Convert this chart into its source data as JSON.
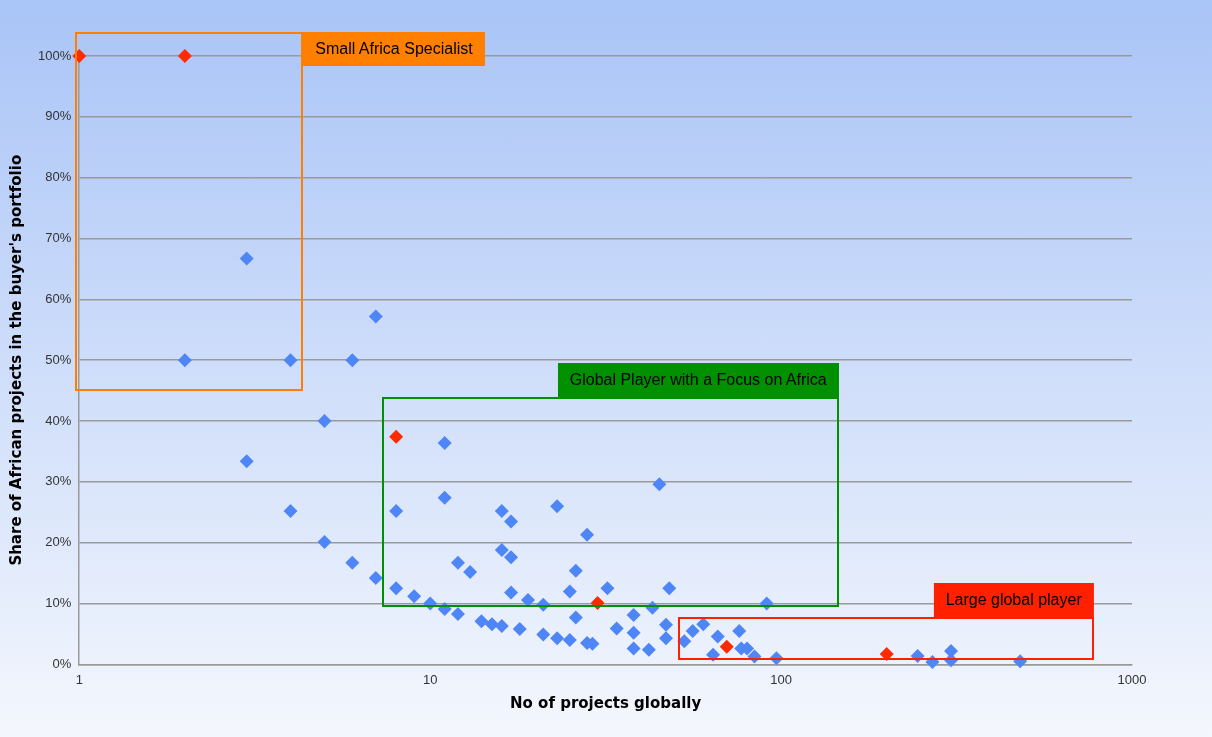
{
  "chart_data": {
    "type": "scatter",
    "xlabel": "No of projects globally",
    "ylabel": "Share of African projects in the buyer's portfolio",
    "log": "x",
    "xlim": [
      1,
      1000
    ],
    "xticks": [
      1,
      10,
      100,
      1000
    ],
    "ylim": [
      0,
      100
    ],
    "yticks": [
      {
        "value": 0,
        "label": "0%"
      },
      {
        "value": 10,
        "label": "10%"
      },
      {
        "value": 20,
        "label": "20%"
      },
      {
        "value": 30,
        "label": "30%"
      },
      {
        "value": 40,
        "label": "40%"
      },
      {
        "value": 50,
        "label": "50%"
      },
      {
        "value": 60,
        "label": "60%"
      },
      {
        "value": 70,
        "label": "70%"
      },
      {
        "value": 80,
        "label": "80%"
      },
      {
        "value": 90,
        "label": "90%"
      },
      {
        "value": 100,
        "label": "100%"
      }
    ],
    "grid": "y",
    "legend": false,
    "marker": "diamond",
    "series": [
      {
        "color": "#4f86f7",
        "x": [
          2,
          3,
          4,
          6,
          7,
          5,
          3,
          4,
          8,
          11,
          11,
          16,
          17,
          23,
          28,
          45,
          5,
          6,
          7,
          8,
          9,
          10,
          11,
          12,
          12,
          13,
          14,
          15,
          16,
          16,
          17,
          17,
          18,
          19,
          21,
          21,
          23,
          25,
          25,
          26,
          26,
          28,
          29,
          32,
          34,
          38,
          38,
          38,
          42,
          43,
          47,
          47,
          48,
          53,
          56,
          60,
          64,
          66,
          76,
          77,
          80,
          84,
          91,
          97,
          245,
          270,
          305,
          305,
          480
        ],
        "values": [
          50,
          66.7,
          50,
          50,
          57.2,
          40,
          33.4,
          25.2,
          25.2,
          36.4,
          27.4,
          25.2,
          23.5,
          26,
          21.3,
          29.6,
          20.1,
          16.7,
          14.2,
          12.5,
          11.2,
          10,
          9.1,
          8.3,
          16.7,
          15.2,
          7.1,
          6.6,
          6.3,
          18.8,
          17.6,
          11.8,
          5.8,
          10.6,
          9.8,
          4.9,
          4.3,
          4,
          12,
          15.4,
          7.7,
          3.5,
          3.4,
          12.5,
          5.9,
          8.1,
          5.2,
          2.6,
          2.4,
          9.3,
          6.5,
          4.3,
          12.5,
          3.8,
          5.5,
          6.6,
          1.6,
          4.6,
          5.5,
          2.6,
          2.6,
          1.3,
          10,
          1,
          1.4,
          0.4,
          2.2,
          0.7,
          0.5
        ]
      },
      {
        "color": "#ff2a00",
        "x": [
          1,
          2,
          8,
          30,
          70,
          200
        ],
        "values": [
          100,
          100,
          37.4,
          10.1,
          2.9,
          1.7
        ]
      }
    ],
    "annotations": [
      "Small Africa Specialist",
      "Global Player with a Focus on Africa",
      "Large global player"
    ]
  }
}
